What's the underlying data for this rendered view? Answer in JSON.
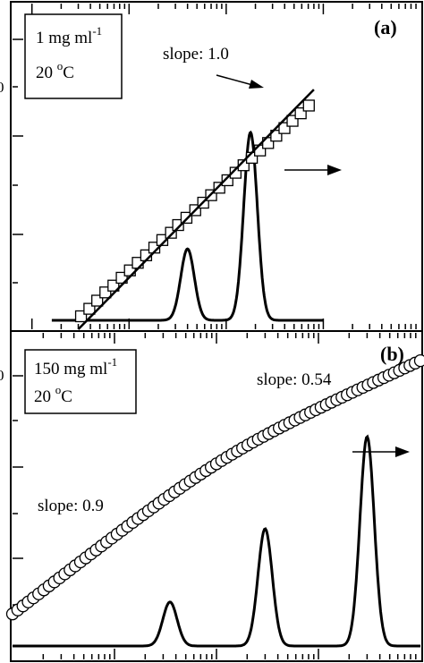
{
  "chart_data": [
    {
      "type": "scatter",
      "panel_label": "(a)",
      "legend": {
        "line1": "1 mg ml",
        "line1_sup": "-1",
        "line2": "20 ",
        "line2_sup": "o",
        "line2_end": "C"
      },
      "annotations": [
        {
          "text": "slope: 1.0"
        }
      ],
      "axes": {
        "x_scale": "log",
        "x_range": [
          1,
          10000
        ],
        "y_scale": "log",
        "y_range": [
          1,
          1000
        ],
        "grid": false
      },
      "series": [
        {
          "marker": "square",
          "x": [
            3.2,
            3.9,
            4.7,
            5.7,
            6.9,
            8.4,
            10.2,
            12.3,
            15,
            18.2,
            22,
            27,
            32,
            39,
            48,
            58,
            70,
            85,
            103,
            125,
            151,
            184,
            223,
            270,
            328,
            398,
            482,
            585,
            710
          ],
          "y": [
            1.4,
            1.7,
            2.1,
            2.6,
            3.1,
            3.8,
            4.6,
            5.6,
            6.8,
            8.3,
            10.1,
            12.2,
            14.9,
            18,
            21.9,
            26.6,
            32.3,
            39.2,
            47.6,
            57.8,
            70.2,
            85.2,
            103,
            125,
            151,
            184,
            222,
            270,
            330
          ]
        },
        {
          "style": "line",
          "x": [
            3,
            800
          ],
          "y": [
            1.0,
            500
          ]
        },
        {
          "style": "distribution",
          "x": [
            1.6,
            1000
          ],
          "peaks": [
            {
              "x": 40,
              "relative_height": 0.38
            },
            {
              "x": 178,
              "relative_height": 1.0
            }
          ]
        }
      ]
    },
    {
      "type": "scatter",
      "panel_label": "(b)",
      "legend": {
        "line1": "150 mg ml",
        "line1_sup": "-1",
        "line2": "20 ",
        "line2_sup": "o",
        "line2_end": "C"
      },
      "annotations": [
        {
          "text": "slope: 0.54"
        },
        {
          "text": "slope: 0.9"
        }
      ],
      "axes": {
        "x_scale": "log",
        "x_range": [
          1,
          10000
        ],
        "y_scale": "log",
        "y_range": [
          1,
          1000
        ],
        "grid": false
      },
      "series": [
        {
          "style": "line+circles",
          "marker": "circle",
          "x_range": [
            1,
            10000
          ]
        },
        {
          "style": "distribution",
          "x": [
            1,
            10000
          ],
          "peaks": [
            {
              "x": 35,
              "relative_height": 0.21
            },
            {
              "x": 300,
              "relative_height": 0.56
            },
            {
              "x": 3000,
              "relative_height": 1.0
            }
          ]
        }
      ]
    }
  ]
}
